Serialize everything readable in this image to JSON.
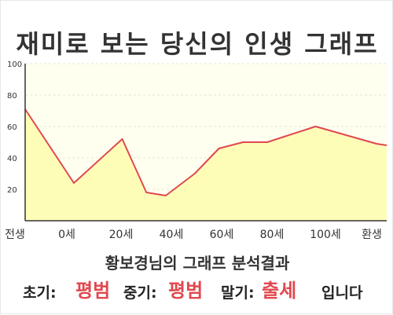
{
  "title": "재미로 보는 당신의 인생 그래프",
  "analysis_title": "황보경님의 그래프 분석결과",
  "result": {
    "early_label": "초기:",
    "early_value": "평범",
    "middle_label": "중기:",
    "middle_value": "평범",
    "late_label": "말기:",
    "late_value": "출세",
    "suffix": "입니다"
  },
  "colors": {
    "line": "#e0484e",
    "fill": "#fefdb8",
    "plot_bg": "#fffff0",
    "grid": "#e6e6d0",
    "accent_text": "#e0484e"
  },
  "chart_data": {
    "type": "area",
    "title": "",
    "xlabel": "",
    "ylabel": "",
    "x_ticks": [
      "전생",
      "0세",
      "20세",
      "40세",
      "60세",
      "80세",
      "100세",
      "환생"
    ],
    "y_ticks": [
      "20",
      "40",
      "60",
      "80",
      "100"
    ],
    "ylim": [
      0,
      100
    ],
    "grid": true,
    "series": [
      {
        "points": [
          {
            "x": "전생",
            "y": 71
          },
          {
            "x": "0세",
            "y": 24
          },
          {
            "x": 20,
            "y": 52
          },
          {
            "x": 30,
            "y": 18
          },
          {
            "x": 38,
            "y": 16
          },
          {
            "x": 50,
            "y": 30
          },
          {
            "x": 60,
            "y": 46
          },
          {
            "x": 70,
            "y": 50
          },
          {
            "x": 80,
            "y": 50
          },
          {
            "x": 100,
            "y": 60
          },
          {
            "x": "환생",
            "y": 49
          }
        ]
      }
    ]
  }
}
